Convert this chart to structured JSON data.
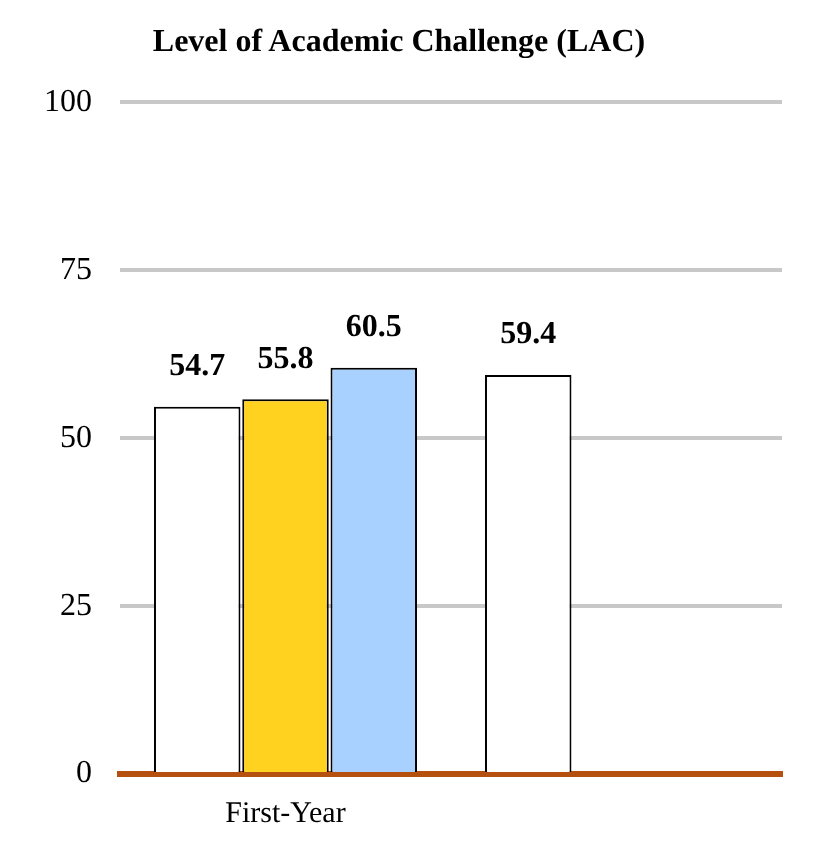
{
  "chart_data": {
    "type": "bar",
    "title": "Level of Academic Challenge (LAC)",
    "categories": [
      "First-Year",
      null
    ],
    "series": [
      {
        "color": "#ffffff",
        "values": [
          54.7,
          59.4
        ]
      },
      {
        "color": "#ffd21f",
        "values": [
          55.8,
          null
        ]
      },
      {
        "color": "#a9d1ff",
        "values": [
          60.5,
          null
        ]
      }
    ],
    "ylim": [
      0,
      100
    ],
    "yticks": [
      0,
      25,
      50,
      75,
      100
    ],
    "grid": "y",
    "data_labels": true,
    "legend": false
  }
}
